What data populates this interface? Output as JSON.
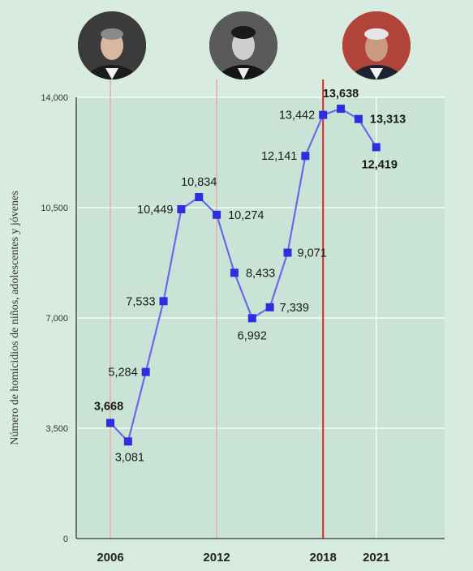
{
  "chart_data": {
    "type": "line",
    "ylabel": "Número de homicidios de niños, adolescentes y jóvenes",
    "ylim": [
      0,
      14000
    ],
    "y_ticks": [
      0,
      3500,
      7000,
      10500,
      14000
    ],
    "y_tick_labels": [
      "0",
      "3,500",
      "7,000",
      "10,500",
      "14,000"
    ],
    "x": [
      2006,
      2007,
      2008,
      2009,
      2010,
      2011,
      2012,
      2013,
      2014,
      2015,
      2016,
      2017,
      2018,
      2019,
      2020,
      2021
    ],
    "x_tick_values": [
      2006,
      2012,
      2018,
      2021
    ],
    "x_tick_labels": [
      "2006",
      "2012",
      "2018",
      "2021"
    ],
    "series": [
      {
        "values": [
          3668,
          3081,
          5284,
          7533,
          10449,
          10834,
          10274,
          8433,
          6992,
          7339,
          9071,
          12141,
          13442,
          13638,
          13313,
          12419
        ],
        "labels": [
          "3,668",
          "3,081",
          "5,284",
          "7,533",
          "10,449",
          "10,834",
          "10,274",
          "8,433",
          "6,992",
          "7,339",
          "9,071",
          "12,141",
          "13,442",
          "13,638",
          "13,313",
          "12,419"
        ],
        "bold": [
          true,
          false,
          false,
          false,
          false,
          false,
          false,
          false,
          false,
          false,
          false,
          false,
          false,
          true,
          true,
          true
        ],
        "color": "#3d3ae0"
      }
    ],
    "grid": true,
    "markers": [
      {
        "year": 2006,
        "color": "#e8a59a",
        "portrait": "portrait-2006"
      },
      {
        "year": 2012,
        "color": "#e8a59a",
        "portrait": "portrait-2012"
      },
      {
        "year": 2018,
        "color": "#e02424",
        "portrait": "portrait-2018"
      }
    ]
  },
  "colors": {
    "background": "#d8ebe1",
    "line": "#6a6ae8",
    "point": "#2e2ee0",
    "grid": "#ffffff",
    "axis": "#333333"
  }
}
